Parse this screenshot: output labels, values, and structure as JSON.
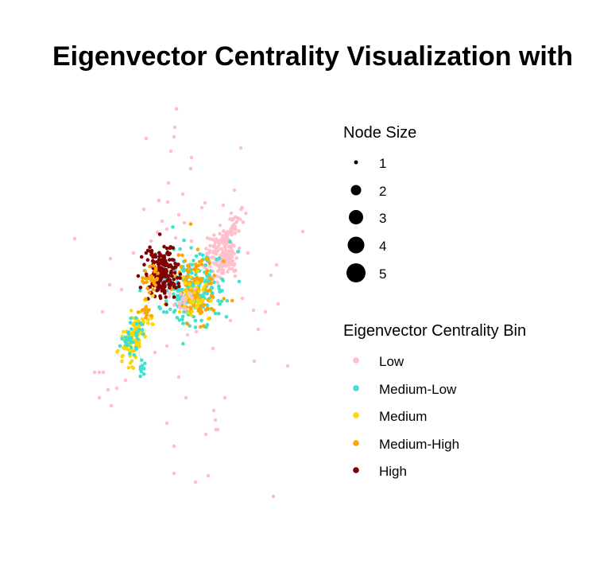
{
  "title": "Eigenvector Centrality Visualization with",
  "legend": {
    "size": {
      "title": "Node Size",
      "entries": [
        "1",
        "2",
        "3",
        "4",
        "5"
      ]
    },
    "bins": {
      "title": "Eigenvector Centrality Bin",
      "entries": [
        {
          "label": "Low",
          "color": "#FFC0CB"
        },
        {
          "label": "Medium-Low",
          "color": "#40E0D0"
        },
        {
          "label": "Medium",
          "color": "#FFD700"
        },
        {
          "label": "Medium-High",
          "color": "#FFA500"
        },
        {
          "label": "High",
          "color": "#800000"
        }
      ]
    }
  },
  "edge_color": "#c8c8c8"
}
